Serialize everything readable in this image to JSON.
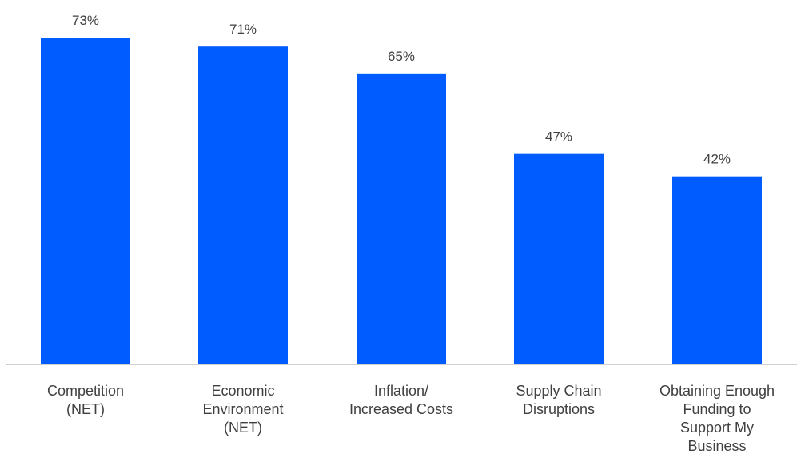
{
  "chart_data": {
    "type": "bar",
    "categories": [
      [
        "Competition",
        "(NET)"
      ],
      [
        "Economic",
        "Environment",
        "(NET)"
      ],
      [
        "Inflation/",
        "Increased Costs"
      ],
      [
        "Supply Chain",
        "Disruptions"
      ],
      [
        "Obtaining Enough",
        "Funding to",
        "Support My",
        "Business"
      ]
    ],
    "values": [
      73,
      71,
      65,
      47,
      42
    ],
    "value_labels": [
      "73%",
      "71%",
      "65%",
      "47%",
      "42%"
    ],
    "title": "",
    "xlabel": "",
    "ylabel": "",
    "ylim": [
      0,
      73
    ],
    "grid": false,
    "legend": "none",
    "colors": {
      "bar": "#005cff",
      "axis": "#bfbfbf",
      "text": "#404040"
    }
  }
}
